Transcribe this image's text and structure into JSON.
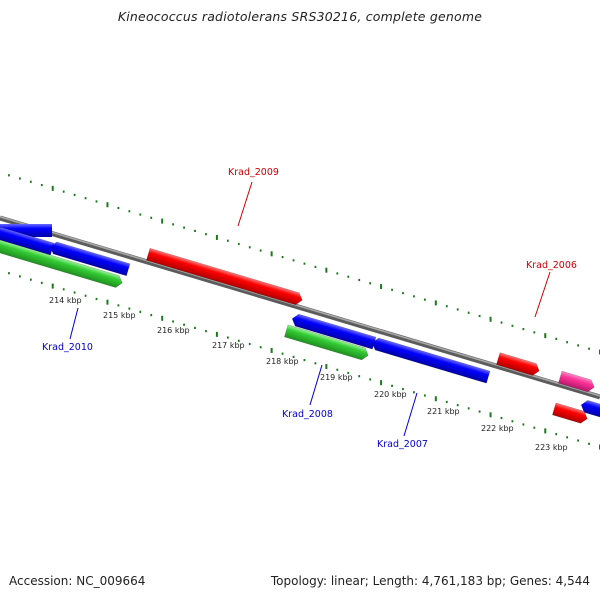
{
  "title": "Kineococcus radiotolerans SRS30216, complete genome",
  "footer": {
    "accession": "Accession: NC_009664",
    "summary": "Topology: linear; Length: 4,761,183 bp; Genes: 4,544"
  },
  "colors": {
    "backbone": "#7f7f7f",
    "tick": "#1b7a1b",
    "forward_gene": "#ff0000",
    "reverse_gene": "#0000ff",
    "other_gene": "#33cc33",
    "pink_gene": "#ff3399",
    "forward_label": "#cc0000",
    "reverse_label": "#0000cc"
  },
  "scale_labels": [
    "214 kbp",
    "215 kbp",
    "216 kbp",
    "217 kbp",
    "218 kbp",
    "219 kbp",
    "220 kbp",
    "221 kbp",
    "222 kbp",
    "223 kbp"
  ],
  "gene_labels": [
    {
      "text": "Krad_2009",
      "strand": "forward"
    },
    {
      "text": "Krad_2006",
      "strand": "forward"
    },
    {
      "text": "Krad_2010",
      "strand": "reverse"
    },
    {
      "text": "Krad_2008",
      "strand": "reverse"
    },
    {
      "text": "Krad_2007",
      "strand": "reverse"
    }
  ]
}
